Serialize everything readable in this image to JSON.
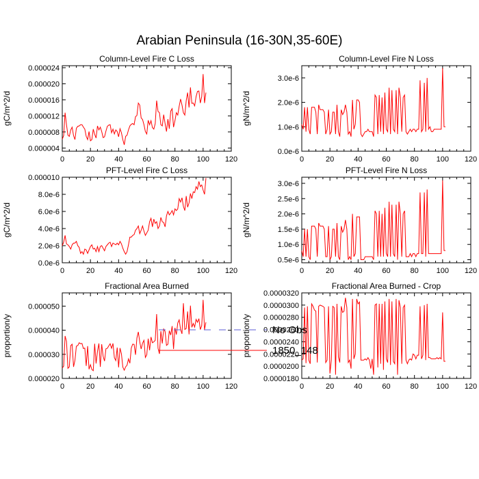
{
  "figure": {
    "title": "Arabian Peninsula (16-30N,35-60E)",
    "legend": [
      {
        "label": "No Obs",
        "color": "#5b5bd6",
        "dash": true
      },
      {
        "label": "1850_148",
        "color": "#ff0000",
        "dash": false
      }
    ]
  },
  "chart_data": [
    {
      "type": "line",
      "title": "Column-Level Fire C Loss",
      "ylabel": "gC/m^2/d",
      "xlim": [
        0,
        120
      ],
      "ylim": [
        3.2e-06,
        2.45e-05
      ],
      "xticks": [
        "0",
        "20",
        "40",
        "60",
        "80",
        "100",
        "120"
      ],
      "yticks": [
        {
          "v": 4e-06,
          "label": "0.000004"
        },
        {
          "v": 8e-06,
          "label": "0.000008"
        },
        {
          "v": 1.2e-05,
          "label": "0.000012"
        },
        {
          "v": 1.6e-05,
          "label": "0.000016"
        },
        {
          "v": 2e-05,
          "label": "0.000020"
        },
        {
          "v": 2.4e-05,
          "label": "0.000024"
        }
      ],
      "series": [
        {
          "color": "#ff0000",
          "values": [
            6.2e-06,
            7.1e-06,
            1.28e-05,
            9.8e-06,
            7.2e-06,
            6.9e-06,
            8.5e-06,
            9.2e-06,
            7.1e-06,
            6.1e-06,
            8.9e-06,
            9.4e-06,
            9.5e-06,
            9.8e-06,
            9.8e-06,
            9.2e-06,
            8.7e-06,
            6.9e-06,
            6.1e-06,
            8.1e-06,
            5.8e-06,
            6.1e-06,
            8.7e-06,
            7.4e-06,
            6.5e-06,
            9.5e-06,
            8.5e-06,
            9.2e-06,
            8.1e-06,
            6.6e-06,
            6.8e-06,
            8.2e-06,
            9.4e-06,
            9.7e-06,
            9.8e-06,
            7.8e-06,
            8.7e-06,
            7.5e-06,
            8.5e-06,
            8.1e-06,
            6.8e-06,
            8.8e-06,
            7.8e-06,
            6.1e-06,
            4.8e-06,
            6.9e-06,
            7.2e-06,
            8.5e-06,
            9.5e-06,
            9.9e-06,
            1.01e-05,
            9.8e-06,
            1.18e-05,
            1.21e-05,
            1.52e-05,
            1.47e-05,
            1.15e-05,
            1.11e-05,
            9.8e-06,
            8.1e-06,
            7.5e-06,
            1.09e-05,
            9.8e-06,
            1.08e-05,
            9.1e-06,
            8.7e-06,
            1.01e-05,
            1.58e-05,
            1.31e-05,
            1.28e-05,
            9.8e-06,
            9.5e-06,
            1.23e-05,
            1.01e-05,
            8.1e-06,
            1.12e-05,
            8.8e-06,
            1.32e-05,
            1.38e-05,
            9.2e-06,
            1.08e-05,
            1.28e-05,
            1.22e-05,
            1.44e-05,
            1.62e-05,
            1.47e-05,
            1.28e-05,
            1.22e-05,
            1.58e-05,
            1.78e-05,
            1.41e-05,
            1.91e-05,
            1.51e-05,
            1.52e-05,
            1.45e-05,
            1.68e-05,
            1.81e-05,
            1.82e-05,
            1.52e-05,
            1.68e-05,
            2.24e-05,
            1.52e-05,
            1.78e-05
          ]
        }
      ]
    },
    {
      "type": "line",
      "title": "Column-Level Fire N Loss",
      "ylabel": "gN/m^2/d",
      "xlim": [
        0,
        120
      ],
      "ylim": [
        0.0,
        3.5e-06
      ],
      "xticks": [
        "0",
        "20",
        "40",
        "60",
        "80",
        "100",
        "120"
      ],
      "yticks": [
        {
          "v": 0.0,
          "label": "0.0e-6"
        },
        {
          "v": 1e-06,
          "label": "1.0e-6"
        },
        {
          "v": 2e-06,
          "label": "2.0e-6"
        },
        {
          "v": 3e-06,
          "label": "3.0e-6"
        }
      ],
      "series": [
        {
          "color": "#ff0000",
          "values": [
            1.1e-06,
            9e-07,
            1.8e-06,
            8e-07,
            1.8e-06,
            9e-07,
            7e-07,
            1.8e-06,
            1.8e-06,
            1.8e-06,
            1.6e-06,
            7e-07,
            1.9e-06,
            1.7e-06,
            1.7e-06,
            1.7e-06,
            1.6e-06,
            7e-07,
            9e-07,
            1.7e-06,
            7e-07,
            8e-07,
            1.6e-06,
            1.6e-06,
            7e-07,
            1.9e-06,
            8e-07,
            6e-07,
            1.7e-06,
            1.5e-06,
            1.6e-06,
            1.9e-06,
            1.6e-06,
            7e-07,
            8e-07,
            6e-07,
            2.1e-06,
            9e-07,
            1.1e-06,
            2.1e-06,
            2.1e-06,
            2e-06,
            7e-07,
            6e-07,
            7e-07,
            8e-07,
            8e-07,
            9e-07,
            8e-07,
            8e-07,
            8e-07,
            6e-07,
            2.3e-06,
            2.2e-06,
            7e-07,
            2.3e-06,
            8e-07,
            2.2e-06,
            7e-07,
            2.4e-06,
            9e-07,
            8e-07,
            2.6e-06,
            7e-07,
            2.5e-06,
            9e-07,
            8e-07,
            2.5e-06,
            7e-07,
            2.6e-06,
            2.2e-06,
            8e-07,
            2.2e-06,
            2.3e-06,
            8e-07,
            7e-07,
            8e-07,
            9e-07,
            8e-07,
            9e-07,
            9e-07,
            8e-07,
            9e-07,
            9e-07,
            2.9e-06,
            8e-07,
            9e-07,
            2.8e-06,
            8e-07,
            3e-06,
            9e-07,
            1e-06,
            8e-07,
            8e-07,
            9e-07,
            9e-07,
            9e-07,
            9e-07,
            9e-07,
            9e-07,
            3.4e-06,
            1e-06,
            1e-06
          ]
        }
      ]
    },
    {
      "type": "line",
      "title": "PFT-Level Fire C Loss",
      "ylabel": "gC/m^2/d",
      "xlim": [
        0,
        120
      ],
      "ylim": [
        0.0,
        1e-05
      ],
      "xticks": [
        "0",
        "20",
        "40",
        "60",
        "80",
        "100",
        "120"
      ],
      "yticks": [
        {
          "v": 0.0,
          "label": "0.0e-6"
        },
        {
          "v": 2e-06,
          "label": "2.0e-6"
        },
        {
          "v": 4e-06,
          "label": "4.0e-6"
        },
        {
          "v": 6e-06,
          "label": "6.0e-6"
        },
        {
          "v": 8e-06,
          "label": "8.0e-6"
        },
        {
          "v": 1e-05,
          "label": "0.000010"
        }
      ],
      "series": [
        {
          "color": "#ff0000",
          "values": [
            2e-06,
            2.4e-06,
            3.2e-06,
            2.2e-06,
            2.1e-06,
            1.9e-06,
            1.6e-06,
            2.1e-06,
            2.3e-06,
            2.3e-06,
            2.5e-06,
            2e-06,
            1.8e-06,
            1.1e-06,
            1.3e-06,
            1e-06,
            1.6e-06,
            1.5e-06,
            1.1e-06,
            1.5e-06,
            1.9e-06,
            2.1e-06,
            1.6e-06,
            1.7e-06,
            1.3e-06,
            1.9e-06,
            1.3e-06,
            1.9e-06,
            2e-06,
            1.7e-06,
            1.4e-06,
            1.9e-06,
            2.1e-06,
            2.3e-06,
            2.4e-06,
            1.9e-06,
            2.3e-06,
            2.2e-06,
            2.1e-06,
            2.3e-06,
            2.1e-06,
            2.5e-06,
            2.2e-06,
            1.7e-06,
            1.3e-06,
            1e-06,
            1.3e-06,
            2.1e-06,
            3e-06,
            3e-06,
            3.2e-06,
            3.3e-06,
            3.8e-06,
            4e-06,
            4.3e-06,
            3.4e-06,
            3.8e-06,
            4.3e-06,
            3.7e-06,
            3.2e-06,
            3.5e-06,
            3.8e-06,
            4.8e-06,
            5.2e-06,
            4.2e-06,
            5.1e-06,
            4.6e-06,
            4.8e-06,
            4e-06,
            4.3e-06,
            5.3e-06,
            4.8e-06,
            4.7e-06,
            4.2e-06,
            5.5e-06,
            6e-06,
            5.6e-06,
            5.8e-06,
            6.1e-06,
            5.6e-06,
            6.3e-06,
            6.1e-06,
            6.3e-06,
            7.5e-06,
            7.1e-06,
            7.6e-06,
            6.6e-06,
            6.1e-06,
            7.8e-06,
            6.5e-06,
            7e-06,
            8.1e-06,
            7.5e-06,
            8.3e-06,
            8.2e-06,
            8.9e-06,
            8.6e-06,
            9.5e-06,
            8.9e-06,
            9.1e-06,
            8.5e-06,
            8e-06,
            9.9e-06
          ]
        }
      ]
    },
    {
      "type": "line",
      "title": "PFT-Level Fire N Loss",
      "ylabel": "gN/m^2/d",
      "xlim": [
        0,
        120
      ],
      "ylim": [
        4e-07,
        3.2e-06
      ],
      "xticks": [
        "0",
        "20",
        "40",
        "60",
        "80",
        "100",
        "120"
      ],
      "yticks": [
        {
          "v": 5e-07,
          "label": "0.5e-6"
        },
        {
          "v": 1e-06,
          "label": "1.0e-6"
        },
        {
          "v": 1.5e-06,
          "label": "1.5e-6"
        },
        {
          "v": 2e-06,
          "label": "2.0e-6"
        },
        {
          "v": 2.5e-06,
          "label": "2.5e-6"
        },
        {
          "v": 3e-06,
          "label": "3.0e-6"
        }
      ],
      "series": [
        {
          "color": "#ff0000",
          "values": [
            8e-07,
            6e-07,
            1.5e-06,
            6e-07,
            1.5e-06,
            6e-07,
            5e-07,
            1.6e-06,
            1.6e-06,
            1.6e-06,
            1.5e-06,
            6e-07,
            1.7e-06,
            1.6e-06,
            1.6e-06,
            1.6e-06,
            1.5e-06,
            6e-07,
            6e-07,
            1.6e-06,
            5e-07,
            6e-07,
            1.5e-06,
            1.5e-06,
            6e-07,
            1.7e-06,
            6e-07,
            5e-07,
            1.6e-06,
            1.4e-06,
            1.5e-06,
            1.8e-06,
            1.5e-06,
            5e-07,
            6e-07,
            5e-07,
            2e-06,
            6e-07,
            7e-07,
            1.9e-06,
            1.9e-06,
            1.9e-06,
            5e-07,
            5e-07,
            5e-07,
            6e-07,
            6e-07,
            6e-07,
            6e-07,
            6e-07,
            6e-07,
            5e-07,
            2.1e-06,
            2e-06,
            6e-07,
            2.1e-06,
            6e-07,
            2e-06,
            6e-07,
            2.2e-06,
            7e-07,
            6e-07,
            2.4e-06,
            6e-07,
            2.3e-06,
            7e-07,
            6e-07,
            2.3e-06,
            5e-07,
            2.4e-06,
            2e-06,
            6e-07,
            2e-06,
            2.1e-06,
            6e-07,
            6e-07,
            6e-07,
            7e-07,
            6e-07,
            7e-07,
            7e-07,
            6e-07,
            7e-07,
            7e-07,
            2.7e-06,
            7e-07,
            7e-07,
            2.7e-06,
            6e-07,
            2.8e-06,
            7e-07,
            7e-07,
            7e-07,
            7e-07,
            7e-07,
            7e-07,
            7e-07,
            7e-07,
            7e-07,
            7e-07,
            3.1e-06,
            8e-07,
            8e-07
          ]
        }
      ]
    },
    {
      "type": "line",
      "title": "Fractional Area Burned",
      "ylabel": "proportion/y",
      "xlim": [
        0,
        120
      ],
      "ylim": [
        2e-05,
        5.55e-05
      ],
      "xticks": [
        "0",
        "20",
        "40",
        "60",
        "80",
        "100",
        "120"
      ],
      "yticks": [
        {
          "v": 2e-05,
          "label": "0.000020"
        },
        {
          "v": 3e-05,
          "label": "0.000030"
        },
        {
          "v": 4e-05,
          "label": "0.000040"
        },
        {
          "v": 5e-05,
          "label": "0.000050"
        }
      ],
      "series": [
        {
          "color": "#ff0000",
          "values": [
            2.43e-05,
            2.51e-05,
            3.76e-05,
            3.54e-05,
            2.42e-05,
            2.48e-05,
            3.36e-05,
            3.42e-05,
            2.48e-05,
            2.75e-05,
            3.34e-05,
            3.36e-05,
            3.48e-05,
            3.44e-05,
            3.45e-05,
            3.24e-05,
            3.26e-05,
            2.52e-05,
            3.34e-05,
            2.38e-05,
            2.57e-05,
            2.37e-05,
            2.32e-05,
            3.44e-05,
            2.62e-05,
            3.12e-05,
            3.45e-05,
            2.48e-05,
            3.42e-05,
            2.92e-05,
            2.72e-05,
            3.23e-05,
            3.25e-05,
            3.35e-05,
            3.44e-05,
            3.25e-05,
            3.45e-05,
            2.86e-05,
            2.74e-05,
            3.28e-05,
            2.46e-05,
            3.26e-05,
            3.02e-05,
            2.47e-05,
            2.34e-05,
            2.48e-05,
            2.55e-05,
            2.81e-05,
            2.63e-05,
            3.26e-05,
            3.42e-05,
            3.41e-05,
            2.98e-05,
            3.68e-05,
            3.93e-05,
            3.52e-05,
            3.22e-05,
            3.46e-05,
            3.58e-05,
            2.87e-05,
            2.98e-05,
            3.65e-05,
            3.17e-05,
            3.72e-05,
            3.48e-05,
            3.52e-05,
            3.58e-05,
            4.67e-05,
            3.25e-05,
            3.02e-05,
            3.96e-05,
            3.45e-05,
            4.05e-05,
            3.95e-05,
            3.37e-05,
            3.42e-05,
            3.98e-05,
            3.8e-05,
            4.17e-05,
            3.22e-05,
            4.1e-05,
            3.82e-05,
            4.3e-05,
            4.43e-05,
            4.03e-05,
            3.85e-05,
            5.12e-05,
            4.03e-05,
            4.07e-05,
            4.78e-05,
            3.83e-05,
            5.02e-05,
            4.12e-05,
            4.28e-05,
            4.13e-05,
            4.45e-05,
            4.33e-05,
            4.48e-05,
            4.03e-05,
            4.19e-05,
            5.26e-05,
            4.03e-05,
            4.33e-05
          ]
        }
      ]
    },
    {
      "type": "line",
      "title": "Fractional Area Burned - Crop",
      "ylabel": "proportion/y",
      "xlim": [
        0,
        120
      ],
      "ylim": [
        1.8e-05,
        3.2e-05
      ],
      "xticks": [
        "0",
        "20",
        "40",
        "60",
        "80",
        "100",
        "120"
      ],
      "yticks": [
        {
          "v": 1.8e-05,
          "label": "0.0000180"
        },
        {
          "v": 2e-05,
          "label": "0.0000200"
        },
        {
          "v": 2.2e-05,
          "label": "0.0000220"
        },
        {
          "v": 2.4e-05,
          "label": "0.0000240"
        },
        {
          "v": 2.6e-05,
          "label": "0.0000260"
        },
        {
          "v": 2.8e-05,
          "label": "0.0000280"
        },
        {
          "v": 3e-05,
          "label": "0.0000300"
        },
        {
          "v": 3.2e-05,
          "label": "0.0000320"
        }
      ],
      "series": [
        {
          "color": "#ff0000",
          "values": [
            2.1e-05,
            2.12e-05,
            2.96e-05,
            2.05e-05,
            2.98e-05,
            2.1e-05,
            2.04e-05,
            3.02e-05,
            2.98e-05,
            2.92e-05,
            2.9e-05,
            2.06e-05,
            2.98e-05,
            3e-05,
            2.99e-05,
            2.98e-05,
            2.96e-05,
            2.06e-05,
            2.1e-05,
            2.98e-05,
            1.88e-05,
            2.1e-05,
            2.98e-05,
            2.96e-05,
            1.86e-05,
            3.02e-05,
            2.15e-05,
            2.06e-05,
            2.98e-05,
            2.88e-05,
            2.9e-05,
            3.12e-05,
            2.96e-05,
            2.06e-05,
            2.1e-05,
            1.96e-05,
            3.1e-05,
            2.12e-05,
            2.2e-05,
            3.1e-05,
            3.02e-05,
            3.05e-05,
            2.1e-05,
            2.1e-05,
            2.1e-05,
            2.12e-05,
            2.1e-05,
            2.14e-05,
            2.1e-05,
            1.96e-05,
            2.12e-05,
            1.86e-05,
            3e-05,
            3.02e-05,
            1.98e-05,
            3.02e-05,
            2.04e-05,
            3.02e-05,
            1.94e-05,
            3.06e-05,
            2.12e-05,
            2.06e-05,
            3.1e-05,
            2.02e-05,
            3.06e-05,
            2.08e-05,
            2.04e-05,
            3.1e-05,
            1.86e-05,
            3.08e-05,
            2.96e-05,
            2.04e-05,
            2.96e-05,
            3e-05,
            2.1e-05,
            2.04e-05,
            2.1e-05,
            2.12e-05,
            2.1e-05,
            2.2e-05,
            2.18e-05,
            2.12e-05,
            2.18e-05,
            2.18e-05,
            2.98e-05,
            2.12e-05,
            2.18e-05,
            3e-05,
            2.1e-05,
            3.02e-05,
            2.14e-05,
            2.14e-05,
            2.12e-05,
            2.12e-05,
            2.12e-05,
            2.12e-05,
            2.14e-05,
            2.12e-05,
            2.14e-05,
            2.12e-05,
            2.88e-05,
            2.08e-05,
            2.08e-05
          ]
        }
      ]
    }
  ]
}
